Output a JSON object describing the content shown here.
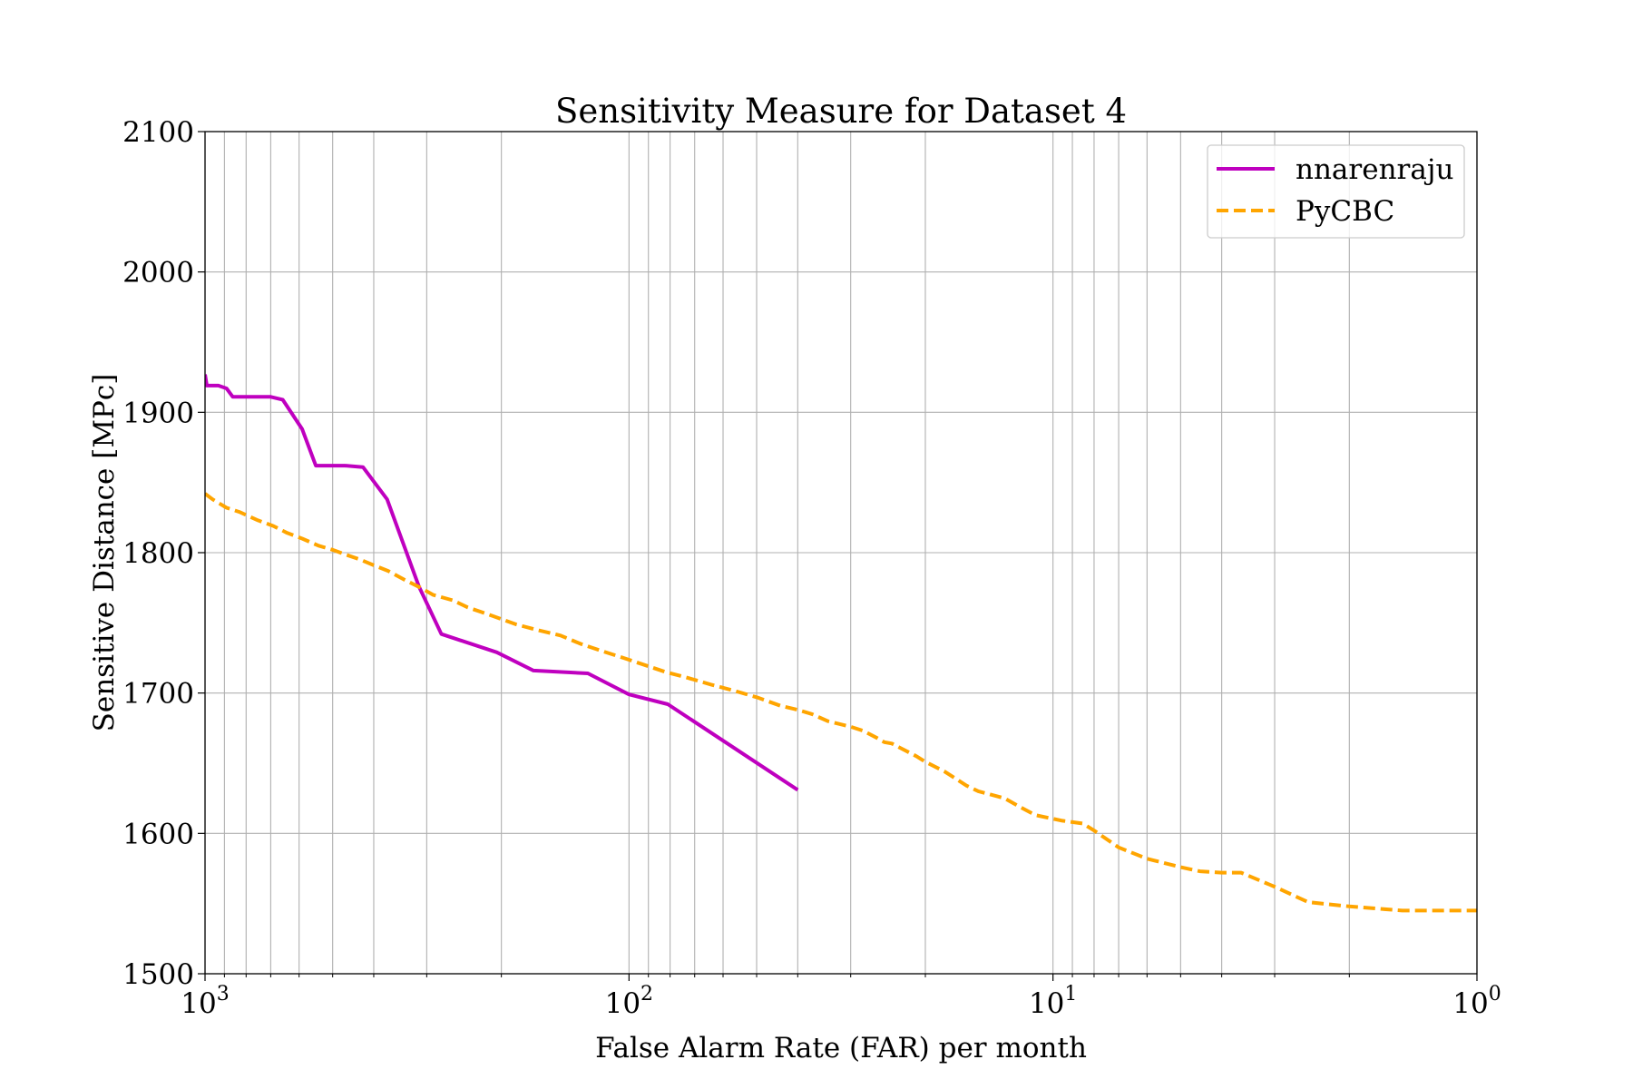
{
  "chart_data": {
    "type": "line",
    "title": "Sensitivity Measure for Dataset 4",
    "xlabel": "False Alarm Rate (FAR) per month",
    "ylabel": "Sensitive Distance [MPc]",
    "x_scale": "log",
    "x_inverted": true,
    "xlim": [
      1000,
      1
    ],
    "ylim": [
      1500,
      2100
    ],
    "grid": true,
    "grid_minor_x": true,
    "legend_position": "top-right",
    "y_ticks": [
      1500,
      1600,
      1700,
      1800,
      1900,
      2000,
      2100
    ],
    "x_ticks": [
      {
        "value": 1000,
        "base": "10",
        "exp": "3"
      },
      {
        "value": 100,
        "base": "10",
        "exp": "2"
      },
      {
        "value": 10,
        "base": "10",
        "exp": "1"
      },
      {
        "value": 1,
        "base": "10",
        "exp": "0"
      }
    ],
    "series": [
      {
        "name": "nnarenraju",
        "color": "#bf00bf",
        "style": "solid",
        "x": [
          1000,
          990,
          930,
          890,
          860,
          812,
          700,
          656,
          590,
          548,
          488,
          468,
          424,
          372,
          313,
          277,
          205,
          168,
          125,
          100,
          81,
          40
        ],
        "y": [
          1927,
          1919,
          1919,
          1917,
          1911,
          1911,
          1911,
          1909,
          1888,
          1862,
          1862,
          1862,
          1861,
          1838,
          1776,
          1742,
          1729,
          1716,
          1714,
          1699,
          1692,
          1631
        ]
      },
      {
        "name": "PyCBC",
        "color": "#ffa500",
        "style": "dashed",
        "x": [
          1000,
          960,
          890,
          830,
          750,
          690,
          640,
          590,
          540,
          500,
          470,
          430,
          400,
          370,
          340,
          310,
          290,
          260,
          240,
          210,
          185,
          165,
          145,
          130,
          116,
          103,
          92,
          82,
          73,
          64,
          57,
          50,
          44,
          40,
          37,
          34,
          30,
          28,
          26,
          25,
          24,
          21,
          20,
          18,
          16,
          15,
          13,
          12,
          11,
          9.5,
          8.5,
          8,
          7,
          6,
          5,
          4.5,
          4,
          3.6,
          3,
          2.5,
          2,
          1.5,
          1
        ],
        "y": [
          1842,
          1838,
          1832,
          1829,
          1823,
          1819,
          1814,
          1810,
          1805,
          1802,
          1799,
          1795,
          1791,
          1787,
          1781,
          1775,
          1770,
          1766,
          1761,
          1755,
          1749,
          1745,
          1741,
          1735,
          1730,
          1725,
          1720,
          1715,
          1711,
          1706,
          1702,
          1697,
          1691,
          1688,
          1685,
          1680,
          1676,
          1673,
          1668,
          1665,
          1664,
          1655,
          1651,
          1644,
          1634,
          1630,
          1625,
          1619,
          1613,
          1609,
          1607,
          1602,
          1590,
          1582,
          1576,
          1573,
          1572,
          1572,
          1562,
          1551,
          1548,
          1545,
          1545
        ]
      }
    ]
  }
}
